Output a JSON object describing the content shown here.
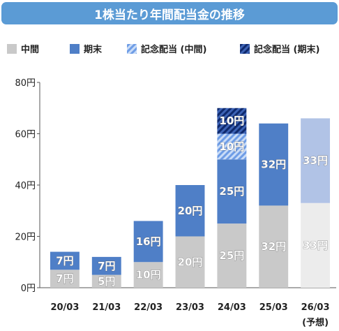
{
  "title": "1株当たり年間配当金の推移",
  "chart_data": {
    "type": "bar",
    "stacked": true,
    "title": "1株当たり年間配当金の推移",
    "categories": [
      "20/03",
      "21/03",
      "22/03",
      "23/03",
      "24/03",
      "25/03",
      "26/03"
    ],
    "category_sublabels": [
      "",
      "",
      "",
      "",
      "",
      "",
      "(予想)"
    ],
    "series": [
      {
        "name": "中間",
        "values": [
          7,
          5,
          10,
          20,
          25,
          32,
          33
        ],
        "labels": [
          "7円",
          "5円",
          "10円",
          "20円",
          "25円",
          "32円",
          "33円"
        ],
        "color": "#c9c9c9",
        "color_forecast": "#ececec"
      },
      {
        "name": "期末",
        "values": [
          7,
          7,
          16,
          20,
          25,
          32,
          33
        ],
        "labels": [
          "7円",
          "7円",
          "16円",
          "20円",
          "25円",
          "32円",
          "33円"
        ],
        "color": "#4f7fc7",
        "color_forecast": "#b1c3e6"
      },
      {
        "name": "記念配当 (中間)",
        "values": [
          0,
          0,
          0,
          0,
          10,
          0,
          0
        ],
        "labels": [
          "",
          "",
          "",
          "",
          "10円",
          "",
          ""
        ],
        "color": "#8db4ee",
        "pattern": "light-diagonal-stripes"
      },
      {
        "name": "記念配当 (期末)",
        "values": [
          0,
          0,
          0,
          0,
          10,
          0,
          0
        ],
        "labels": [
          "",
          "",
          "",
          "",
          "10円",
          "",
          ""
        ],
        "color": "#1f3f8f",
        "pattern": "dark-diagonal-stripes"
      }
    ],
    "forecast_category_index": 6,
    "ylim": [
      0,
      80
    ],
    "yticks": [
      0,
      20,
      40,
      60,
      80
    ],
    "ytick_labels": [
      "0円",
      "20円",
      "40円",
      "60円",
      "80円"
    ],
    "legend_position": "top",
    "grid": false
  }
}
